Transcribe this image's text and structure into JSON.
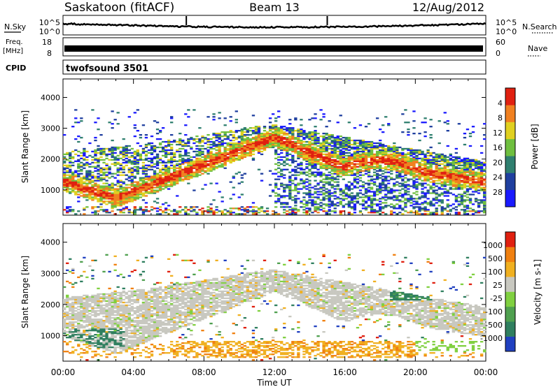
{
  "header": {
    "station": "Saskatoon (fitACF)",
    "beam": "Beam 13",
    "date": "12/Aug/2012"
  },
  "panels": {
    "nsky_label": "N.Sky",
    "nsearch_label": "N.Search",
    "nsky_ticks": [
      "10^5",
      "10^0"
    ],
    "nsearch_ticks": [
      "10^5",
      "10^0"
    ],
    "freq_label_1": "Freq.",
    "freq_label_2": "[MHz]",
    "freq_ticks": [
      "18",
      "8"
    ],
    "nave_label": "Nave",
    "nave_ticks": [
      "60",
      "0"
    ],
    "cpid_label": "CPID",
    "cpid_value": "twofsound 3501"
  },
  "chart_data": [
    {
      "type": "heatmap",
      "name": "power",
      "ylabel": "Slant Range [km]",
      "yticks": [
        1000,
        2000,
        3000,
        4000
      ],
      "ylim": [
        180,
        4600
      ],
      "colorbar_label": "Power [dB]",
      "colorbar_ticks": [
        "4",
        "8",
        "12",
        "16",
        "20",
        "24",
        "28"
      ],
      "colors": [
        "#1a1aff",
        "#1f3f9f",
        "#2f7f6f",
        "#6fbf3f",
        "#e0d020",
        "#f08020",
        "#e02010"
      ]
    },
    {
      "type": "heatmap",
      "name": "velocity",
      "ylabel": "Slant Range [km]",
      "yticks": [
        1000,
        2000,
        3000,
        4000
      ],
      "ylim": [
        180,
        4600
      ],
      "colorbar_label": "Velocity [m s-1]",
      "colorbar_ticks": [
        "1000",
        "500",
        "100",
        "25",
        "-25",
        "-100",
        "-500",
        "-1000"
      ],
      "colors": [
        "#2040c0",
        "#2f7f5f",
        "#4fa04f",
        "#80d040",
        "#c8c8c0",
        "#f0b020",
        "#f08010",
        "#e02010"
      ]
    }
  ],
  "xaxis": {
    "label": "Time UT",
    "ticks": [
      "00:00",
      "04:00",
      "08:00",
      "12:00",
      "16:00",
      "20:00",
      "00:00"
    ]
  }
}
